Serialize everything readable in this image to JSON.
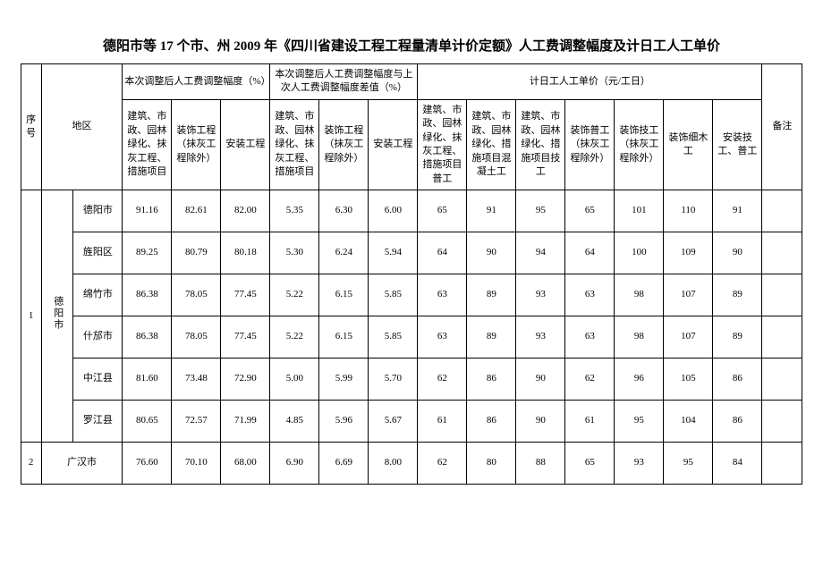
{
  "title": "德阳市等 17 个市、州 2009 年《四川省建设工程工程量清单计价定额》人工费调整幅度及计日工人工单价",
  "headers": {
    "seq": "序号",
    "region": "地区",
    "group1": "本次调整后人工费调整幅度（%）",
    "group2": "本次调整后人工费调整幅度与上次人工费调整幅度差值（%）",
    "group3": "计日工人工单价（元/工日）",
    "remark": "备注",
    "g1c1": "建筑、市政、园林绿化、抹灰工程、措施项目",
    "g1c2": "装饰工程（抹灰工程除外）",
    "g1c3": "安装工程",
    "g2c1": "建筑、市政、园林绿化、抹灰工程、措施项目",
    "g2c2": "装饰工程（抹灰工程除外）",
    "g2c3": "安装工程",
    "g3c1": "建筑、市政、园林绿化、抹灰工程、措施项目普工",
    "g3c2": "建筑、市政、园林绿化、措施项目混凝土工",
    "g3c3": "建筑、市政、园林绿化、措施项目技工",
    "g3c4": "装饰普工（抹灰工程除外）",
    "g3c5": "装饰技工（抹灰工程除外）",
    "g3c6": "装饰细木工",
    "g3c7": "安装技工、普工"
  },
  "region_group": "德阳市",
  "rows": [
    {
      "seq": "1",
      "name": "德阳市",
      "v": [
        "91.16",
        "82.61",
        "82.00",
        "5.35",
        "6.30",
        "6.00",
        "65",
        "91",
        "95",
        "65",
        "101",
        "110",
        "91"
      ]
    },
    {
      "seq": "",
      "name": "旌阳区",
      "v": [
        "89.25",
        "80.79",
        "80.18",
        "5.30",
        "6.24",
        "5.94",
        "64",
        "90",
        "94",
        "64",
        "100",
        "109",
        "90"
      ]
    },
    {
      "seq": "",
      "name": "绵竹市",
      "v": [
        "86.38",
        "78.05",
        "77.45",
        "5.22",
        "6.15",
        "5.85",
        "63",
        "89",
        "93",
        "63",
        "98",
        "107",
        "89"
      ]
    },
    {
      "seq": "",
      "name": "什邡市",
      "v": [
        "86.38",
        "78.05",
        "77.45",
        "5.22",
        "6.15",
        "5.85",
        "63",
        "89",
        "93",
        "63",
        "98",
        "107",
        "89"
      ]
    },
    {
      "seq": "",
      "name": "中江县",
      "v": [
        "81.60",
        "73.48",
        "72.90",
        "5.00",
        "5.99",
        "5.70",
        "62",
        "86",
        "90",
        "62",
        "96",
        "105",
        "86"
      ]
    },
    {
      "seq": "",
      "name": "罗江县",
      "v": [
        "80.65",
        "72.57",
        "71.99",
        "4.85",
        "5.96",
        "5.67",
        "61",
        "86",
        "90",
        "61",
        "95",
        "104",
        "86"
      ]
    },
    {
      "seq": "2",
      "name": "广汉市",
      "v": [
        "76.60",
        "70.10",
        "68.00",
        "6.90",
        "6.69",
        "8.00",
        "62",
        "80",
        "88",
        "65",
        "93",
        "95",
        "84"
      ]
    }
  ]
}
